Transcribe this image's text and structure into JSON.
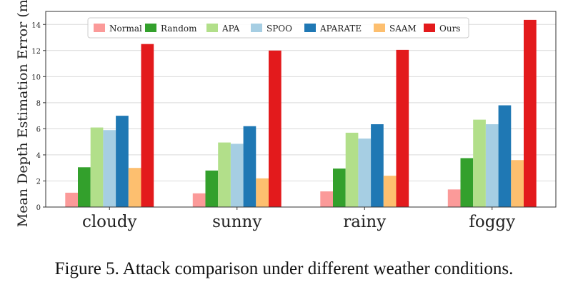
{
  "chart_data": {
    "type": "bar",
    "title": "",
    "xlabel": "",
    "ylabel": "Mean Depth Estimation Error (m)",
    "ylim": [
      0,
      15
    ],
    "yticks": [
      0,
      2,
      4,
      6,
      8,
      10,
      12,
      14
    ],
    "grid": "horizontal",
    "legend_position": "top",
    "categories": [
      "cloudy",
      "sunny",
      "rainy",
      "foggy"
    ],
    "series": [
      {
        "name": "Normal",
        "color": "#fb9a99",
        "values": [
          1.1,
          1.05,
          1.2,
          1.35
        ]
      },
      {
        "name": "Random",
        "color": "#33a02c",
        "values": [
          3.05,
          2.8,
          2.95,
          3.75
        ]
      },
      {
        "name": "APA",
        "color": "#b2df8a",
        "values": [
          6.1,
          4.95,
          5.7,
          6.7
        ]
      },
      {
        "name": "SPOO",
        "color": "#a6cee3",
        "values": [
          5.9,
          4.85,
          5.25,
          6.35
        ]
      },
      {
        "name": "APARATE",
        "color": "#1f78b4",
        "values": [
          7.0,
          6.2,
          6.35,
          7.8
        ]
      },
      {
        "name": "SAAM",
        "color": "#fdbf6f",
        "values": [
          3.0,
          2.2,
          2.4,
          3.6
        ]
      },
      {
        "name": "Ours",
        "color": "#e31a1c",
        "values": [
          12.5,
          12.0,
          12.05,
          14.35
        ]
      }
    ]
  },
  "caption": "Figure 5. Attack comparison under different weather conditions."
}
